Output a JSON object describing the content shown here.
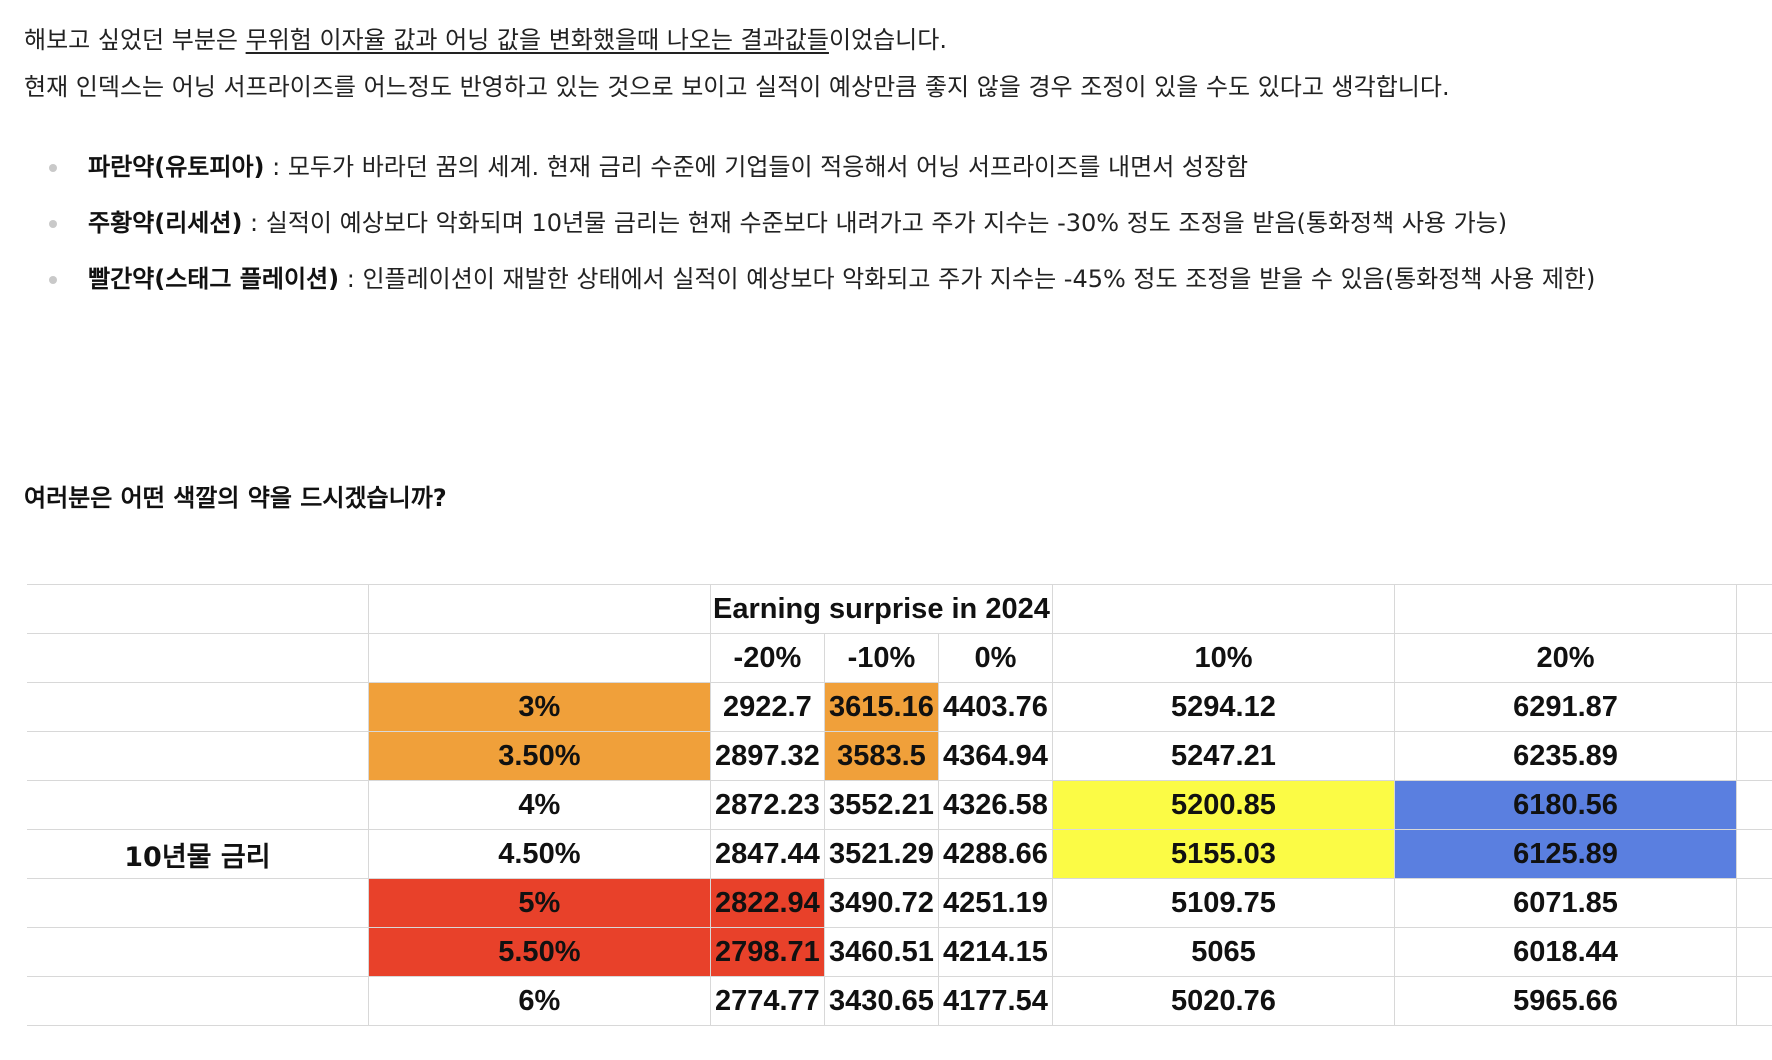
{
  "paragraphs": {
    "p1_before": "해보고 싶었던 부분은 ",
    "p1_underlined": "무위험 이자율 값과 어닝 값을 변화했을때 나오는 결과값들",
    "p1_after": "이었습니다.",
    "p2": "현재 인덱스는 어닝 서프라이즈를 어느정도 반영하고 있는 것으로 보이고 실적이 예상만큼 좋지 않을 경우 조정이 있을 수도 있다고 생각합니다."
  },
  "bullets": [
    {
      "title": "파란약(유토피아)",
      "text": " : 모두가 바라던 꿈의 세계. 현재 금리 수준에 기업들이 적응해서 어닝 서프라이즈를 내면서 성장함"
    },
    {
      "title": "주황약(리세션)",
      "text": " : 실적이 예상보다 악화되며 10년물 금리는 현재 수준보다 내려가고 주가 지수는 -30% 정도 조정을 받음(통화정책 사용 가능)"
    },
    {
      "title": "빨간약(스태그 플레이션)",
      "text": " : 인플레이션이 재발한 상태에서 실적이 예상보다 악화되고 주가 지수는 -45% 정도 조정을 받을 수 있음(통화정책 사용 제한)"
    }
  ],
  "question": "여러분은 어떤 색깔의 약을 드시겠습니까?",
  "table": {
    "header_title": "Earning surprise in 2024",
    "row_axis_label": "10년물 금리",
    "columns": [
      "-20%",
      "-10%",
      "0%",
      "10%",
      "20%"
    ],
    "colors": {
      "orange": "#f0a03a",
      "red": "#e8412a",
      "yellow": "#fbfb45",
      "blue": "#5a7fe0"
    },
    "rows": [
      {
        "rate": "3%",
        "values": [
          "2922.7",
          "3615.16",
          "4403.76",
          "5294.12",
          "6291.87"
        ]
      },
      {
        "rate": "3.50%",
        "values": [
          "2897.32",
          "3583.5",
          "4364.94",
          "5247.21",
          "6235.89"
        ]
      },
      {
        "rate": "4%",
        "values": [
          "2872.23",
          "3552.21",
          "4326.58",
          "5200.85",
          "6180.56"
        ]
      },
      {
        "rate": "4.50%",
        "values": [
          "2847.44",
          "3521.29",
          "4288.66",
          "5155.03",
          "6125.89"
        ]
      },
      {
        "rate": "5%",
        "values": [
          "2822.94",
          "3490.72",
          "4251.19",
          "5109.75",
          "6071.85"
        ]
      },
      {
        "rate": "5.50%",
        "values": [
          "2798.71",
          "3460.51",
          "4214.15",
          "5065",
          "6018.44"
        ]
      },
      {
        "rate": "6%",
        "values": [
          "2774.77",
          "3430.65",
          "4177.54",
          "5020.76",
          "5965.66"
        ]
      }
    ]
  }
}
